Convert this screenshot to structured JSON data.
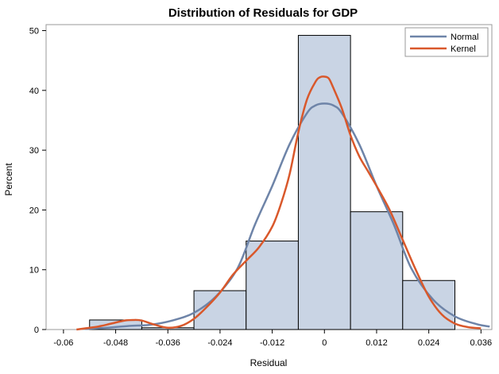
{
  "chart_data": {
    "type": "bar",
    "title": "Distribution of Residuals for GDP",
    "xlabel": "Residual",
    "ylabel": "Percent",
    "xlim": [
      -0.064,
      0.0385
    ],
    "ylim": [
      0,
      51
    ],
    "x_ticks": [
      -0.06,
      -0.048,
      -0.036,
      -0.024,
      -0.012,
      0,
      0.012,
      0.024,
      0.036
    ],
    "x_tick_labels": [
      "-0.06",
      "-0.048",
      "-0.036",
      "-0.024",
      "-0.012",
      "0",
      "0.012",
      "0.024",
      "0.036"
    ],
    "y_ticks": [
      0,
      10,
      20,
      30,
      40,
      50
    ],
    "y_tick_labels": [
      "0",
      "10",
      "20",
      "30",
      "40",
      "50"
    ],
    "histogram": {
      "bin_width": 0.012,
      "bin_centers": [
        -0.048,
        -0.036,
        -0.024,
        -0.012,
        0,
        0.012,
        0.024
      ],
      "values": [
        1.6,
        0.3,
        6.5,
        14.8,
        49.2,
        19.7,
        8.2
      ],
      "fill": "#c9d4e4",
      "stroke": "#000000"
    },
    "series": [
      {
        "name": "Normal",
        "color": "#6e84a8",
        "x": [
          -0.055,
          -0.05,
          -0.045,
          -0.04,
          -0.035,
          -0.03,
          -0.025,
          -0.02,
          -0.016,
          -0.012,
          -0.008,
          -0.004,
          -0.002,
          0,
          0.002,
          0.004,
          0.008,
          0.012,
          0.016,
          0.02,
          0.025,
          0.03,
          0.035,
          0.038
        ],
        "y": [
          0.1,
          0.3,
          0.6,
          0.8,
          1.5,
          2.8,
          5.5,
          10.2,
          17.5,
          24.0,
          31.0,
          36.2,
          37.5,
          37.8,
          37.5,
          36.2,
          31.0,
          24.0,
          17.5,
          10.2,
          5.0,
          2.2,
          0.9,
          0.5
        ]
      },
      {
        "name": "Kernel",
        "color": "#d9582b",
        "x": [
          -0.057,
          -0.055,
          -0.052,
          -0.049,
          -0.046,
          -0.044,
          -0.042,
          -0.039,
          -0.036,
          -0.033,
          -0.03,
          -0.027,
          -0.024,
          -0.021,
          -0.018,
          -0.015,
          -0.012,
          -0.01,
          -0.008,
          -0.006,
          -0.004,
          -0.002,
          -0.001,
          0,
          0.001,
          0.002,
          0.004,
          0.006,
          0.008,
          0.01,
          0.012,
          0.015,
          0.018,
          0.021,
          0.024,
          0.027,
          0.03,
          0.033,
          0.036
        ],
        "y": [
          0.0,
          0.2,
          0.5,
          1.0,
          1.5,
          1.6,
          1.5,
          0.8,
          0.3,
          0.6,
          1.8,
          3.8,
          6.2,
          9.2,
          11.5,
          13.8,
          17.2,
          21.0,
          26.0,
          33.0,
          38.5,
          41.5,
          42.2,
          42.3,
          42.0,
          40.5,
          37.0,
          32.5,
          29.0,
          26.5,
          24.0,
          20.0,
          15.0,
          10.0,
          5.5,
          2.5,
          1.0,
          0.4,
          0.2
        ]
      }
    ],
    "legend": {
      "placement": "top-right"
    },
    "grid": false
  }
}
